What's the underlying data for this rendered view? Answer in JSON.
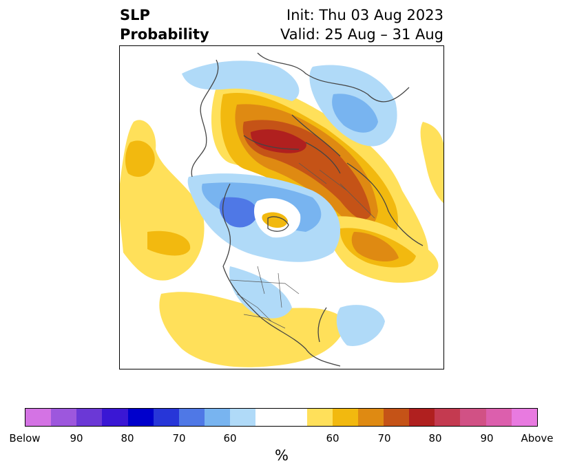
{
  "header": {
    "title_line1": "SLP",
    "title_line2": "Probability",
    "init_text": "Init: Thu 03 Aug 2023",
    "valid_text": "Valid: 25 Aug – 31 Aug"
  },
  "colorbar": {
    "unit_label": "%",
    "segments": [
      "#d473e4",
      "#9d57dd",
      "#6b38d6",
      "#3a17d4",
      "#0000cc",
      "#2736d8",
      "#4f78e6",
      "#78b4f0",
      "#b0daf8",
      "#ffffff",
      "#ffe05a",
      "#f2b90f",
      "#df8a12",
      "#c55317",
      "#b0201f",
      "#c43a50",
      "#d15185",
      "#dc5fad",
      "#e87ae0"
    ],
    "ticks": [
      "Below",
      "90",
      "80",
      "70",
      "60",
      "60",
      "70",
      "80",
      "90",
      "Above"
    ]
  },
  "map": {
    "colors": {
      "light_blue": "#b0daf8",
      "mid_blue": "#78b4f0",
      "blue": "#4f78e6",
      "yellow": "#ffe05a",
      "gold": "#f2b90f",
      "orange": "#df8a12",
      "dark_orange": "#c55317",
      "red": "#b0201f",
      "coast": "#444444"
    }
  }
}
